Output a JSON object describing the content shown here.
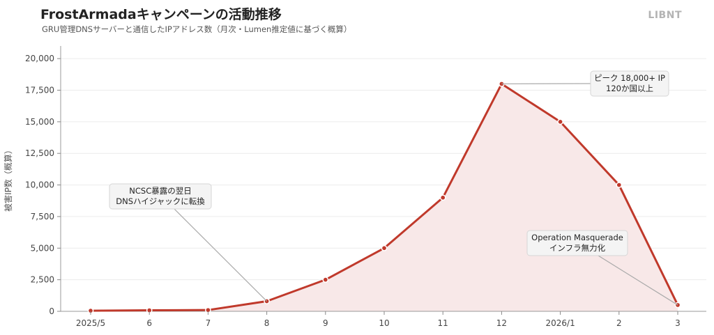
{
  "header": {
    "title": "FrostArmadaキャンペーンの活動推移",
    "subtitle": "GRU管理DNSサーバーと通信したIPアドレス数（月次・Lumen推定値に基づく概算）",
    "brand": "LIBNT"
  },
  "chart_data": {
    "type": "area",
    "title": "FrostArmadaキャンペーンの活動推移",
    "subtitle": "GRU管理DNSサーバーと通信したIPアドレス数（月次・Lumen推定値に基づく概算）",
    "xlabel": "",
    "ylabel": "被害IP数（概算）",
    "categories": [
      "2025/5",
      "6",
      "7",
      "8",
      "9",
      "10",
      "11",
      "12",
      "2026/1",
      "2",
      "3"
    ],
    "values": [
      50,
      80,
      100,
      800,
      2500,
      5000,
      9000,
      18000,
      15000,
      10000,
      500
    ],
    "ylim": [
      0,
      21000
    ],
    "yticks": [
      0,
      2500,
      5000,
      7500,
      10000,
      12500,
      15000,
      17500,
      20000
    ],
    "ytick_labels": [
      "0",
      "2,500",
      "5,000",
      "7,500",
      "10,000",
      "12,500",
      "15,000",
      "17,500",
      "20,000"
    ],
    "grid": "horizontal",
    "colors": {
      "line": "#c0392b",
      "fill": "#f8e8e8",
      "grid": "#ececec"
    },
    "annotations": [
      {
        "index": 3,
        "lines": [
          "NCSC暴露の翌日",
          "DNSハイジャックに転換"
        ]
      },
      {
        "index": 7,
        "lines": [
          "ピーク 18,000+ IP",
          "120か国以上"
        ]
      },
      {
        "index": 10,
        "lines": [
          "Operation Masquerade",
          "インフラ無力化"
        ]
      }
    ]
  }
}
